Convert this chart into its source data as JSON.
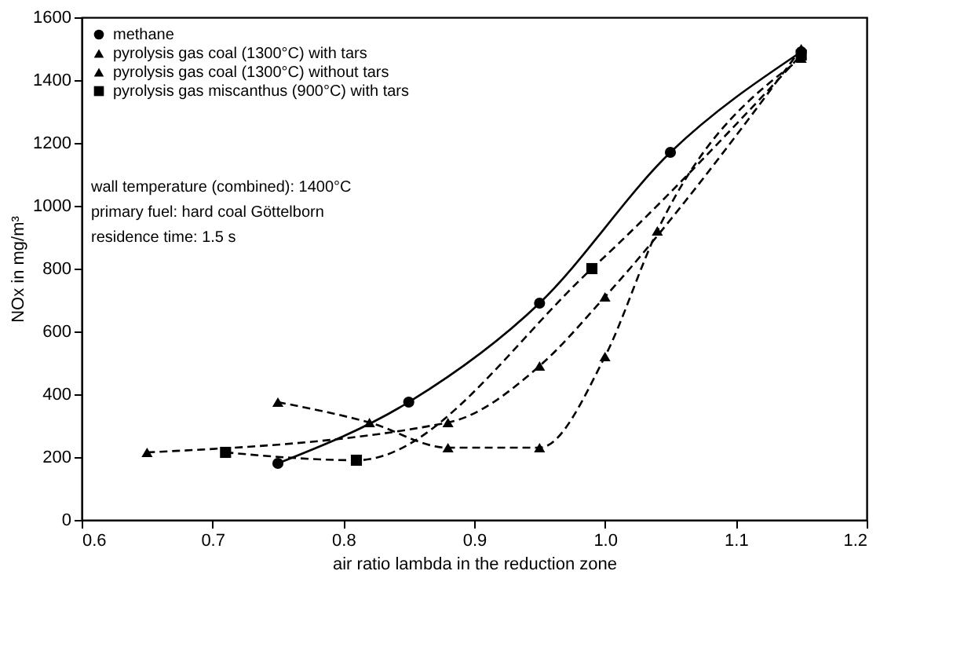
{
  "chart_data": {
    "type": "line",
    "xlabel": "air ratio lambda in the reduction zone",
    "ylabel": "NOx in mg/m³",
    "xlim": [
      0.6,
      1.2
    ],
    "xticks": [
      0.6,
      0.7,
      0.8,
      0.9,
      {
        "value": 1,
        "label": "1.0"
      },
      1.1,
      1.2
    ],
    "ylim": [
      0,
      1600
    ],
    "yticks": [
      0,
      200,
      400,
      600,
      800,
      1000,
      1200,
      1400,
      1600
    ],
    "grid": false,
    "legend": "top left",
    "series": [
      {
        "name": "methane",
        "color": "#000000",
        "marker": "circle",
        "line_style": "solid",
        "x": [
          0.75,
          0.85,
          0.95,
          1.05,
          1.15
        ],
        "values": [
          180,
          375,
          690,
          1170,
          1490
        ]
      },
      {
        "name": "pyrolysis gas coal (1300°C) with tars",
        "color": "#000000",
        "marker": "triangle",
        "line_style": "dashed",
        "x": [
          0.75,
          0.82,
          0.88,
          0.95,
          1.0,
          1.04,
          1.15
        ],
        "values": [
          375,
          310,
          230,
          230,
          520,
          920,
          1470
        ]
      },
      {
        "name": "pyrolysis gas coal (1300°C) without tars",
        "color": "#000000",
        "marker": "triangle",
        "line_style": "dashed",
        "x": [
          0.65,
          0.88,
          0.95,
          1.0,
          1.15
        ],
        "values": [
          215,
          310,
          490,
          710,
          1500
        ]
      },
      {
        "name": "pyrolysis gas miscanthus (900°C) with tars",
        "color": "#000000",
        "marker": "square",
        "line_style": "dashed",
        "x": [
          0.71,
          0.81,
          0.99,
          1.15
        ],
        "values": [
          215,
          190,
          800,
          1480
        ]
      }
    ],
    "annotations": [
      "wall temperature (combined): 1400°C",
      "primary fuel: hard coal Göttelborn",
      "residence time: 1.5 s"
    ]
  }
}
